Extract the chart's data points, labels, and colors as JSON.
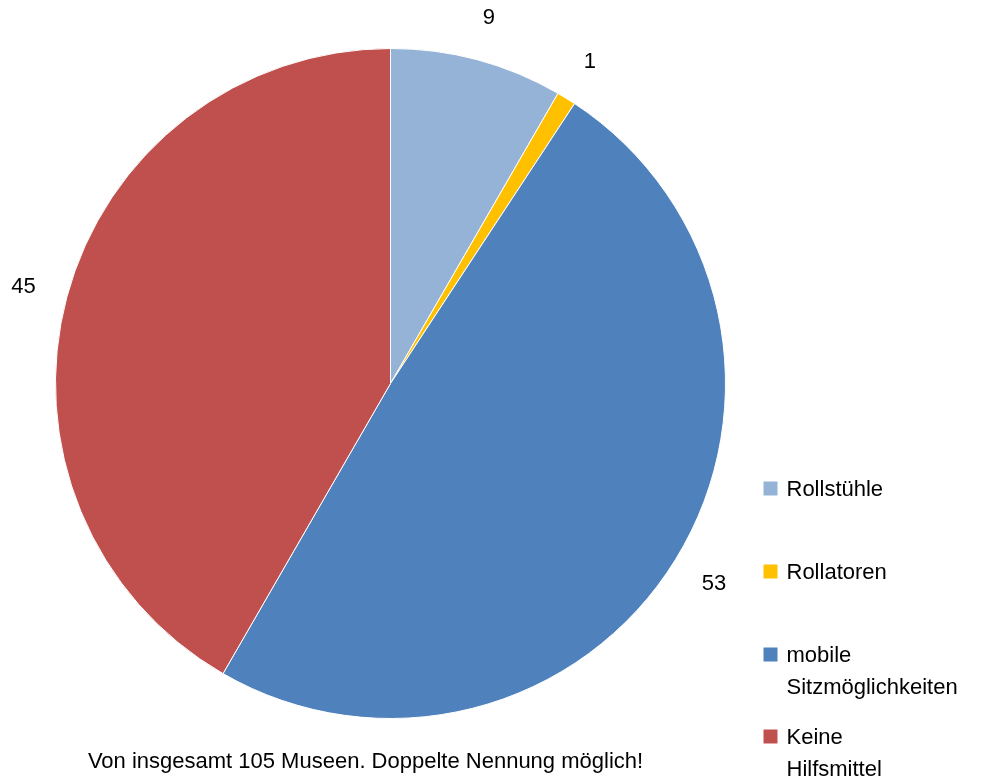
{
  "chart_data": {
    "type": "pie",
    "categories": [
      "Rollstühle",
      "Rollatoren",
      "mobile Sitzmöglichkeiten",
      "Keine Hilfsmittel"
    ],
    "values": [
      9,
      1,
      53,
      45
    ],
    "colors": [
      "#95b3d7",
      "#ffc000",
      "#4f81bd",
      "#c0504d"
    ],
    "data_labels": true,
    "legend": "right",
    "annotations": [
      "Von insgesamt 105 Museen. Doppelte Nennung möglich!"
    ]
  }
}
